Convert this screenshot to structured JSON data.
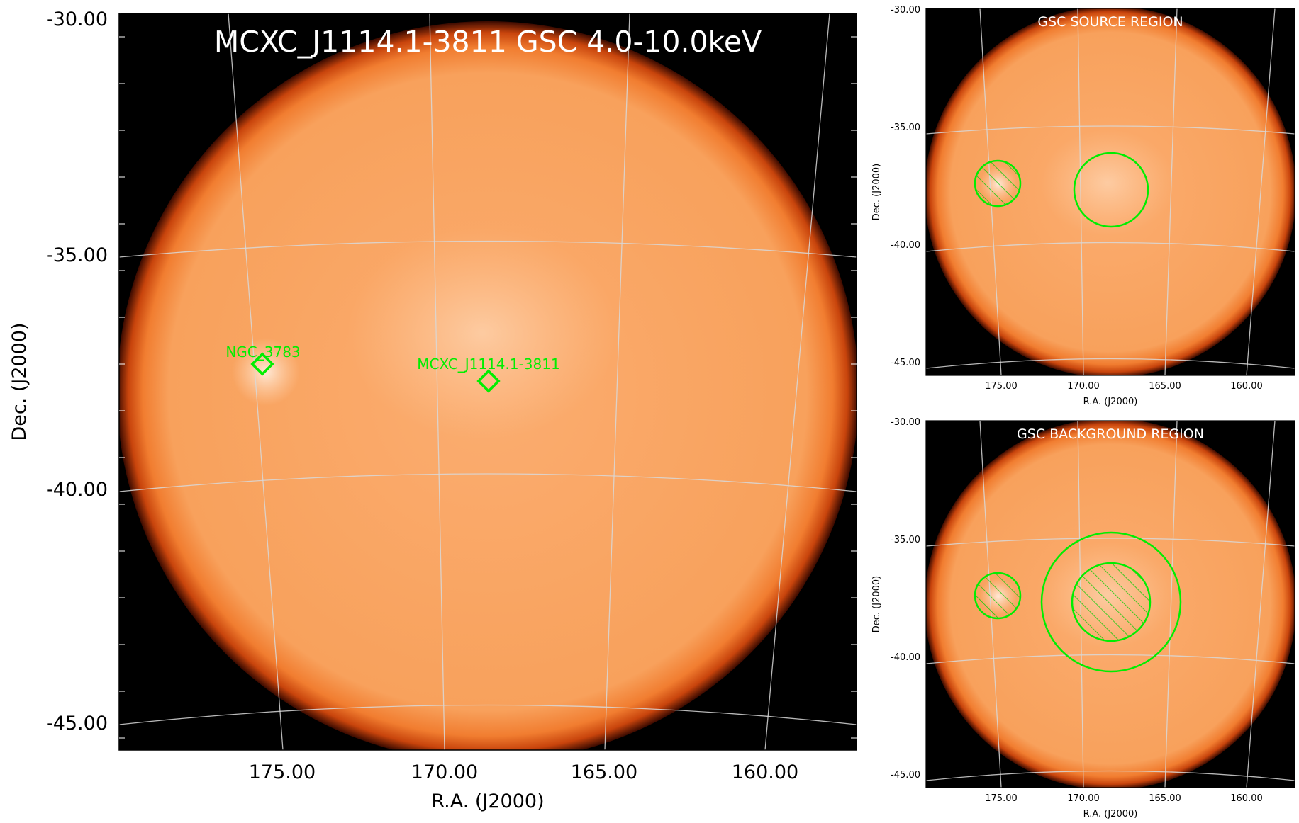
{
  "main": {
    "title": "MCXC_J1114.1-3811 GSC 4.0-10.0keV",
    "xlabel": "R.A. (J2000)",
    "ylabel": "Dec. (J2000)",
    "xticks": [
      "175.00",
      "170.00",
      "165.00",
      "160.00"
    ],
    "yticks": [
      "-30.00",
      "-35.00",
      "-40.00",
      "-45.00"
    ],
    "markers": [
      {
        "label": "NGC_3783",
        "ra": 174.76,
        "dec": -37.74
      },
      {
        "label": "MCXC_J1114.1-3811",
        "ra": 168.5,
        "dec": -38.19
      }
    ],
    "marker_color": "#00ee00"
  },
  "source_panel": {
    "title": "GSC SOURCE REGION",
    "xlabel": "R.A. (J2000)",
    "ylabel": "Dec. (J2000)",
    "xticks": [
      "175.00",
      "170.00",
      "165.00",
      "160.00"
    ],
    "yticks": [
      "-30.00",
      "-35.00",
      "-40.00",
      "-45.00"
    ]
  },
  "background_panel": {
    "title": "GSC BACKGROUND REGION",
    "xlabel": "R.A. (J2000)",
    "ylabel": "Dec. (J2000)",
    "xticks": [
      "175.00",
      "170.00",
      "165.00",
      "160.00"
    ],
    "yticks": [
      "-30.00",
      "-35.00",
      "-40.00",
      "-45.00"
    ]
  },
  "colors": {
    "sky_fill": "#f8a15c",
    "sky_edge": "#c0400a",
    "sky_bright": "#ffe7cc",
    "region_green": "#00ee00"
  }
}
